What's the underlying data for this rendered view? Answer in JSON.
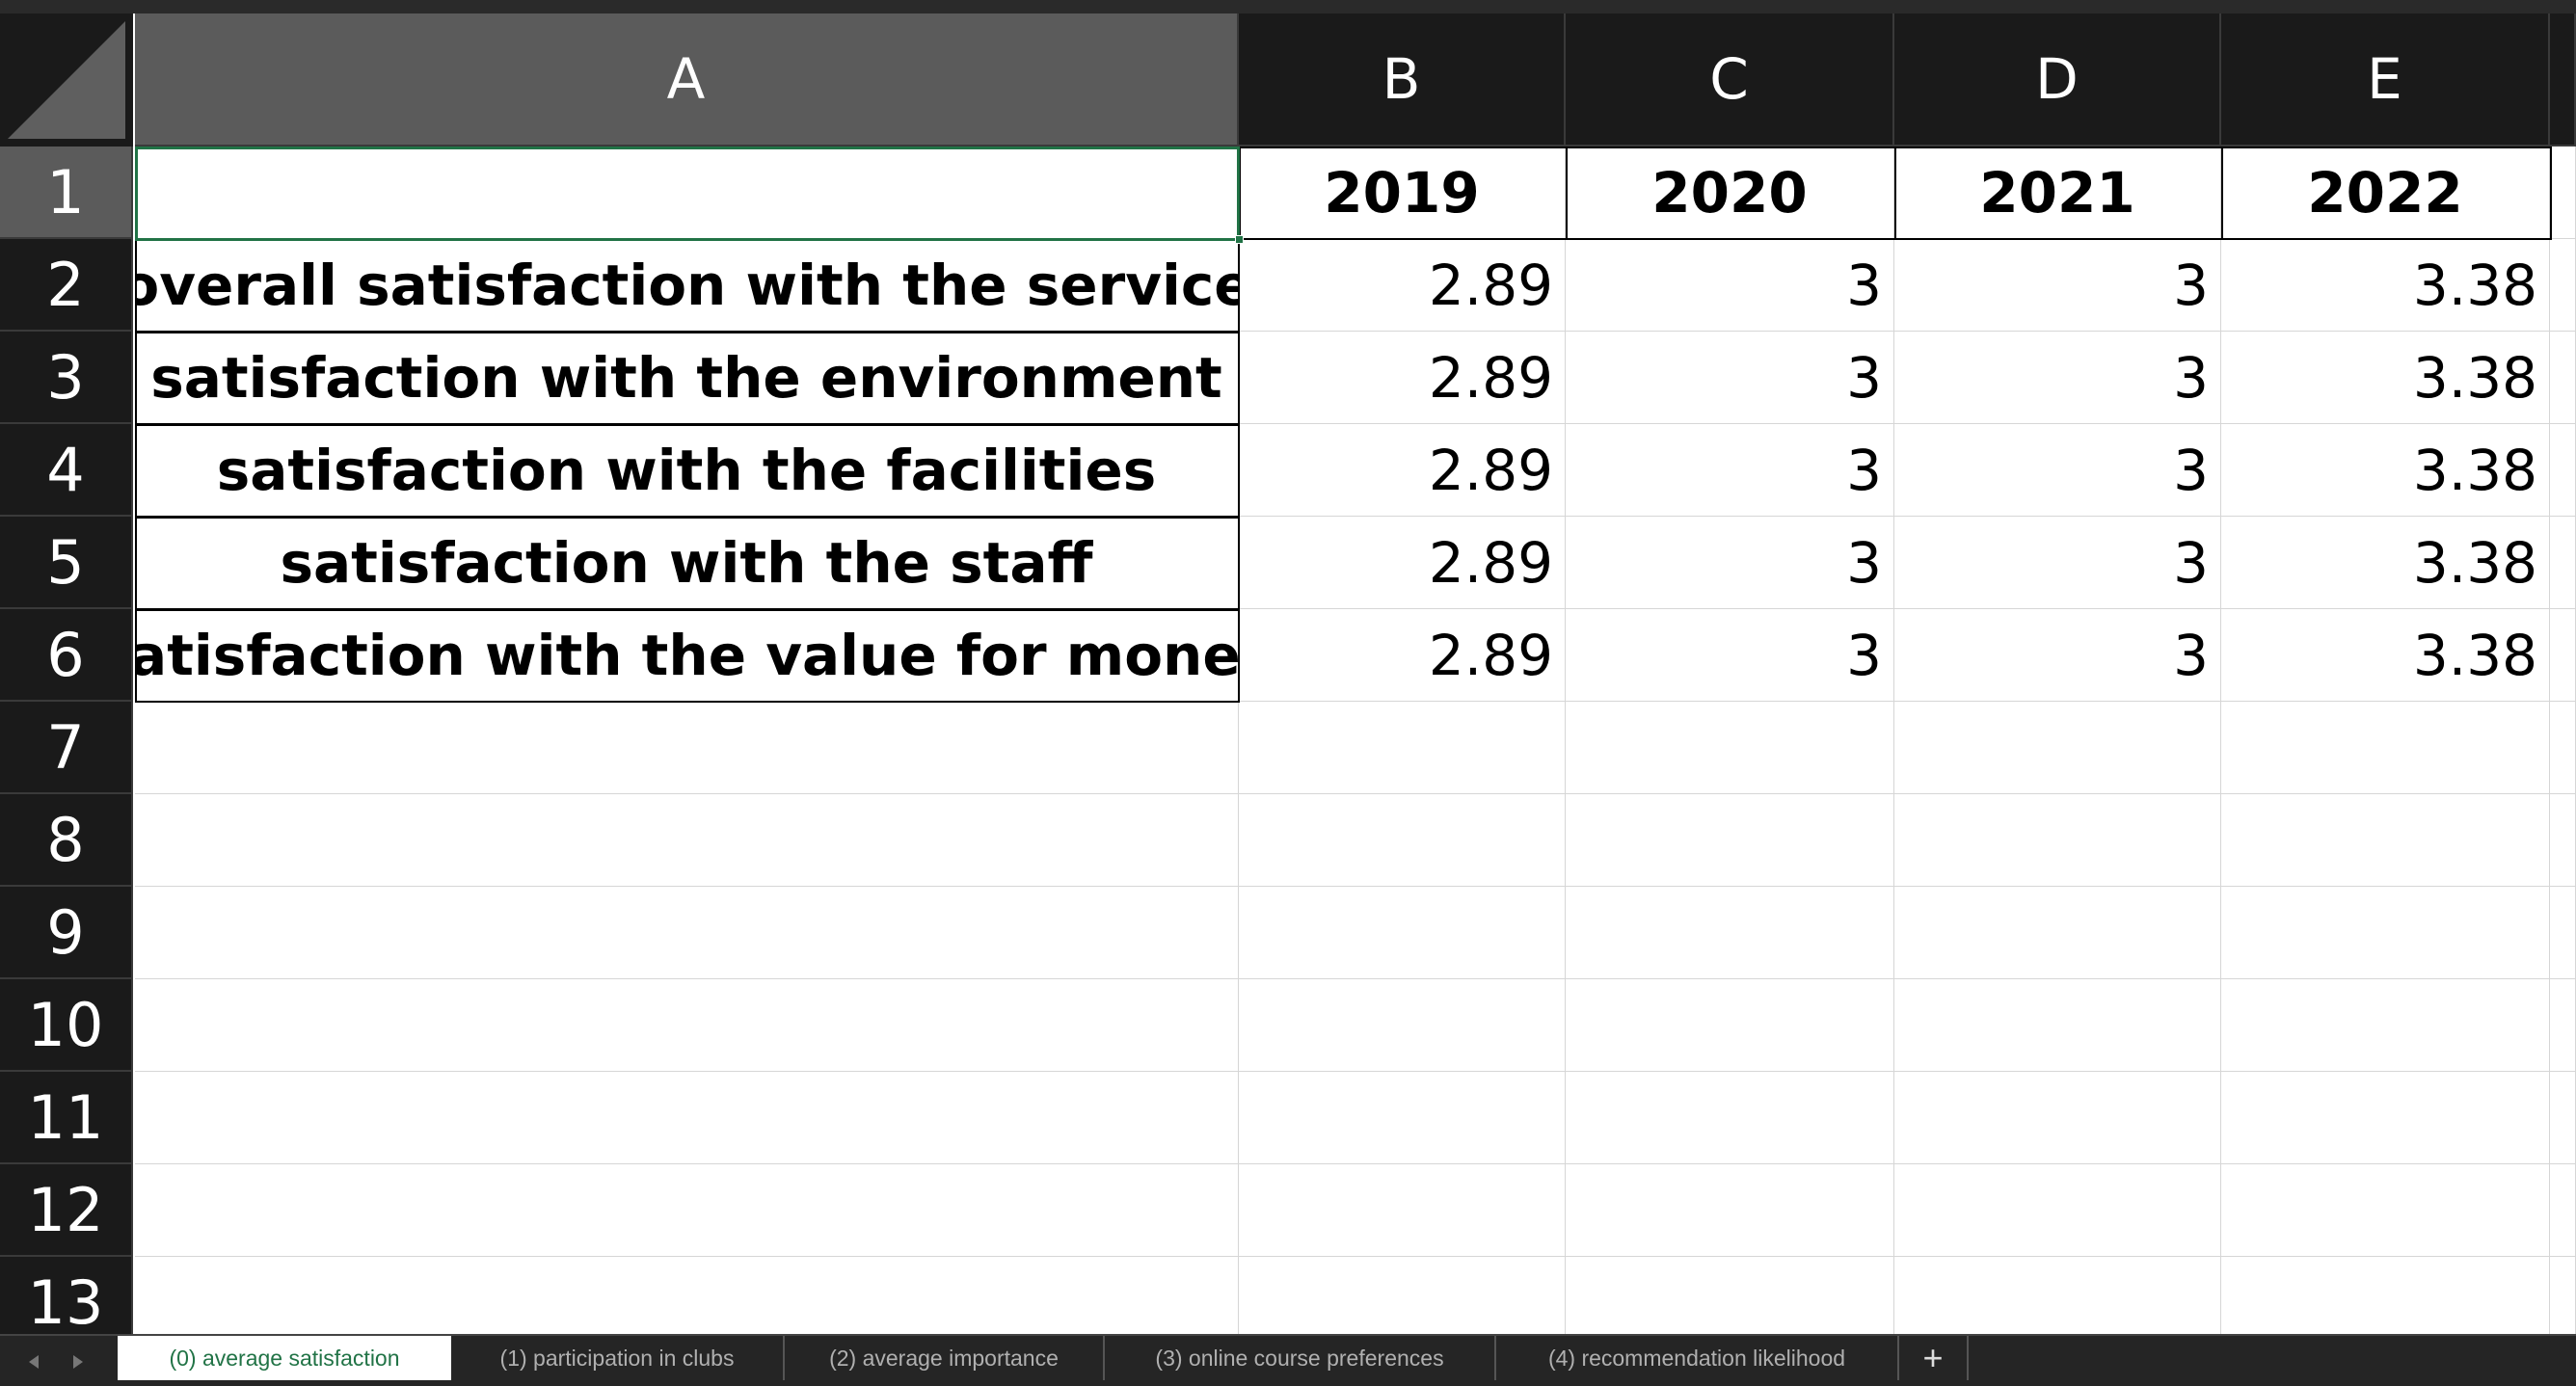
{
  "columns": [
    "A",
    "B",
    "C",
    "D",
    "E"
  ],
  "row_numbers": [
    1,
    2,
    3,
    4,
    5,
    6,
    7,
    8,
    9,
    10,
    11,
    12,
    13
  ],
  "table": {
    "header": [
      "2019",
      "2020",
      "2021",
      "2022"
    ],
    "rows": [
      [
        "overall satisfaction with the service",
        2.89,
        3,
        3,
        3.38
      ],
      [
        "satisfaction with the environment",
        2.89,
        3,
        3,
        3.38
      ],
      [
        "satisfaction with the facilities",
        2.89,
        3,
        3,
        3.38
      ],
      [
        "satisfaction with the staff",
        2.89,
        3,
        3,
        3.38
      ],
      [
        "satisfaction with the value for money",
        2.89,
        3,
        3,
        3.38
      ]
    ]
  },
  "sheet_tabs": [
    "(0) average satisfaction",
    "(1) participation in clubs",
    "(2) average importance",
    "(3) online course preferences",
    "(4) recommendation likelihood"
  ],
  "add_sheet": "+"
}
